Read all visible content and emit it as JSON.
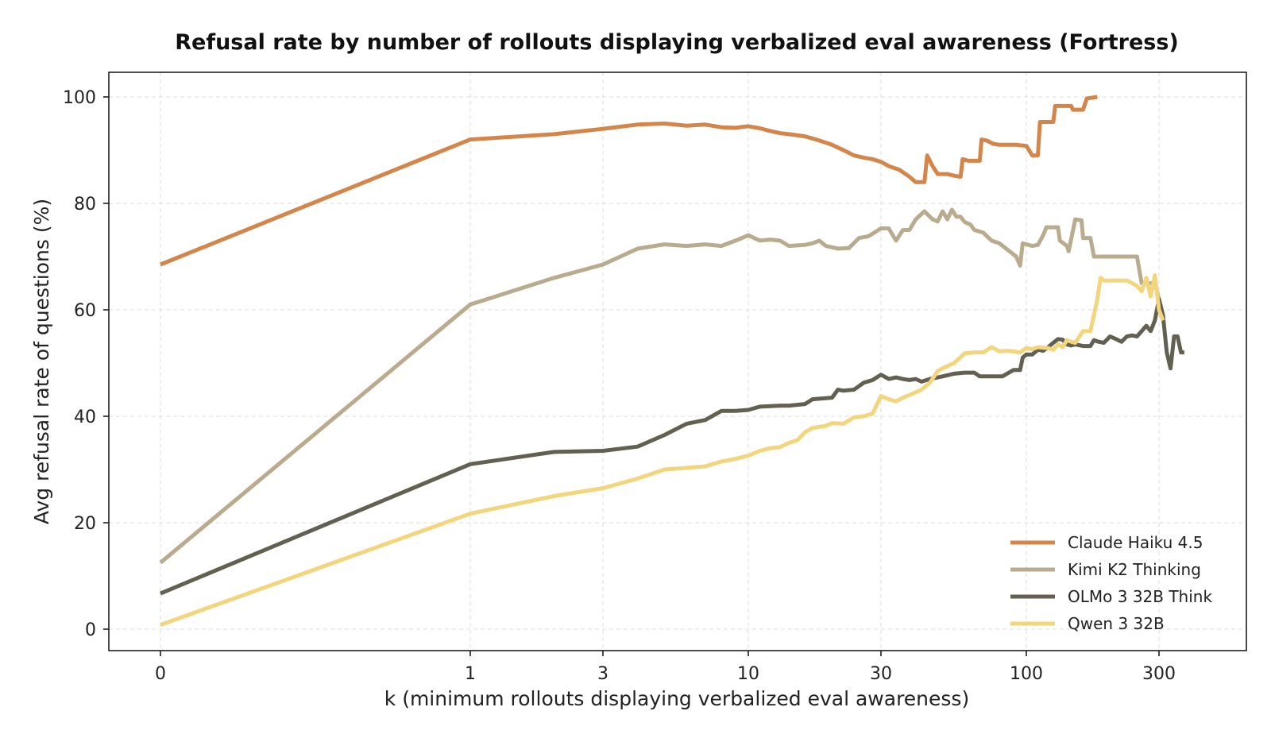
{
  "chart_data": {
    "type": "line",
    "title": "Refusal rate by number of rollouts displaying verbalized eval awareness (Fortress)",
    "xlabel": "k (minimum rollouts displaying verbalized eval awareness)",
    "ylabel": "Avg refusal rate of questions (%)",
    "x_scale": "symlog",
    "x_ticks": [
      0,
      1,
      3,
      10,
      30,
      100,
      300
    ],
    "x_tick_labels": [
      "0",
      "1",
      "3",
      "10",
      "30",
      "100",
      "300"
    ],
    "xlim": [
      0,
      400
    ],
    "ylim": [
      -4,
      105
    ],
    "y_ticks": [
      0,
      20,
      40,
      60,
      80,
      100
    ],
    "y_tick_labels": [
      "0",
      "20",
      "40",
      "60",
      "80",
      "100"
    ],
    "grid": true,
    "legend_position": "lower-right",
    "series": [
      {
        "name": "Claude Haiku 4.5",
        "color": "#D4854A",
        "points": [
          [
            0,
            68.5
          ],
          [
            1,
            92
          ],
          [
            2,
            93
          ],
          [
            3,
            94
          ],
          [
            4,
            94.8
          ],
          [
            5,
            95
          ],
          [
            6,
            94.6
          ],
          [
            7,
            94.8
          ],
          [
            8,
            94.3
          ],
          [
            9,
            94.2
          ],
          [
            10,
            94.5
          ],
          [
            11,
            94.1
          ],
          [
            12,
            93.6
          ],
          [
            13,
            93.2
          ],
          [
            14,
            93
          ],
          [
            16,
            92.6
          ],
          [
            18,
            91.8
          ],
          [
            20,
            91
          ],
          [
            22,
            90
          ],
          [
            24,
            89
          ],
          [
            26,
            88.6
          ],
          [
            28,
            88.3
          ],
          [
            30,
            87.8
          ],
          [
            32,
            87
          ],
          [
            35,
            86.3
          ],
          [
            38,
            85
          ],
          [
            40,
            84
          ],
          [
            43,
            84
          ],
          [
            44,
            89
          ],
          [
            46,
            87
          ],
          [
            48,
            85.5
          ],
          [
            52,
            85.5
          ],
          [
            55,
            85.2
          ],
          [
            58,
            85
          ],
          [
            59,
            88.3
          ],
          [
            62,
            88
          ],
          [
            68,
            88
          ],
          [
            69,
            92
          ],
          [
            72,
            91.8
          ],
          [
            76,
            91.2
          ],
          [
            80,
            91
          ],
          [
            92,
            91
          ],
          [
            100,
            90.8
          ],
          [
            105,
            89
          ],
          [
            110,
            89
          ],
          [
            112,
            95.3
          ],
          [
            125,
            95.3
          ],
          [
            127,
            98.3
          ],
          [
            145,
            98.3
          ],
          [
            147,
            97.6
          ],
          [
            160,
            97.6
          ],
          [
            165,
            99.7
          ],
          [
            180,
            100
          ]
        ]
      },
      {
        "name": "Kimi K2 Thinking",
        "color": "#B9AB8E",
        "points": [
          [
            0,
            12.5
          ],
          [
            1,
            61
          ],
          [
            2,
            66
          ],
          [
            3,
            68.5
          ],
          [
            4,
            71.5
          ],
          [
            5,
            72.3
          ],
          [
            6,
            72
          ],
          [
            7,
            72.3
          ],
          [
            8,
            72
          ],
          [
            9,
            73
          ],
          [
            10,
            74
          ],
          [
            11,
            73
          ],
          [
            12,
            73.2
          ],
          [
            13,
            73
          ],
          [
            14,
            72
          ],
          [
            16,
            72.2
          ],
          [
            17,
            72.5
          ],
          [
            18,
            73
          ],
          [
            19,
            72
          ],
          [
            21,
            71.5
          ],
          [
            23,
            71.6
          ],
          [
            25,
            73.5
          ],
          [
            27,
            73.8
          ],
          [
            28,
            74.3
          ],
          [
            30,
            75.3
          ],
          [
            32,
            75.3
          ],
          [
            34,
            73
          ],
          [
            36,
            75
          ],
          [
            38,
            75
          ],
          [
            40,
            77
          ],
          [
            43,
            78.5
          ],
          [
            46,
            77
          ],
          [
            48,
            76.6
          ],
          [
            50,
            78.5
          ],
          [
            52,
            77
          ],
          [
            54,
            78.8
          ],
          [
            56,
            77.5
          ],
          [
            58,
            77.5
          ],
          [
            60,
            76.5
          ],
          [
            63,
            76
          ],
          [
            65,
            75
          ],
          [
            70,
            74.5
          ],
          [
            75,
            73
          ],
          [
            80,
            72.5
          ],
          [
            86,
            71.2
          ],
          [
            92,
            70
          ],
          [
            95,
            68.3
          ],
          [
            97,
            72.5
          ],
          [
            105,
            72
          ],
          [
            110,
            72.2
          ],
          [
            115,
            74
          ],
          [
            118,
            75.5
          ],
          [
            130,
            75.5
          ],
          [
            132,
            73
          ],
          [
            140,
            72
          ],
          [
            142,
            71
          ],
          [
            150,
            77
          ],
          [
            158,
            76.8
          ],
          [
            160,
            73.5
          ],
          [
            170,
            73.5
          ],
          [
            175,
            70
          ],
          [
            200,
            70
          ],
          [
            250,
            70
          ],
          [
            260,
            65
          ],
          [
            290,
            65
          ],
          [
            300,
            62
          ],
          [
            310,
            59
          ]
        ]
      },
      {
        "name": "OLMo 3 32B Think",
        "color": "#636052",
        "points": [
          [
            0,
            6.7
          ],
          [
            1,
            31
          ],
          [
            2,
            33.3
          ],
          [
            3,
            33.5
          ],
          [
            4,
            34.3
          ],
          [
            5,
            36.5
          ],
          [
            6,
            38.6
          ],
          [
            7,
            39.3
          ],
          [
            8,
            41
          ],
          [
            9,
            41
          ],
          [
            10,
            41.2
          ],
          [
            11,
            41.8
          ],
          [
            12,
            41.9
          ],
          [
            13,
            42
          ],
          [
            14,
            42
          ],
          [
            16,
            42.3
          ],
          [
            17,
            43.2
          ],
          [
            18,
            43.3
          ],
          [
            20,
            43.5
          ],
          [
            21,
            45
          ],
          [
            22,
            44.8
          ],
          [
            24,
            45
          ],
          [
            26,
            46.3
          ],
          [
            28,
            46.8
          ],
          [
            30,
            47.8
          ],
          [
            32,
            47
          ],
          [
            34,
            47.3
          ],
          [
            36,
            47
          ],
          [
            38,
            46.8
          ],
          [
            40,
            47
          ],
          [
            42,
            46.5
          ],
          [
            45,
            47
          ],
          [
            48,
            47.3
          ],
          [
            50,
            47.5
          ],
          [
            55,
            48
          ],
          [
            60,
            48.2
          ],
          [
            65,
            48.2
          ],
          [
            68,
            47.5
          ],
          [
            75,
            47.5
          ],
          [
            82,
            47.5
          ],
          [
            90,
            48.7
          ],
          [
            92,
            48.7
          ],
          [
            95,
            48.7
          ],
          [
            97,
            51
          ],
          [
            100,
            51.6
          ],
          [
            105,
            51.6
          ],
          [
            110,
            52.5
          ],
          [
            115,
            52.3
          ],
          [
            120,
            53
          ],
          [
            125,
            53.8
          ],
          [
            130,
            54.5
          ],
          [
            135,
            54.4
          ],
          [
            140,
            53.5
          ],
          [
            145,
            53.3
          ],
          [
            150,
            53.5
          ],
          [
            160,
            53.2
          ],
          [
            170,
            53.2
          ],
          [
            175,
            54.3
          ],
          [
            182,
            54
          ],
          [
            190,
            53.8
          ],
          [
            200,
            55
          ],
          [
            210,
            54.5
          ],
          [
            220,
            54
          ],
          [
            230,
            55
          ],
          [
            240,
            55.2
          ],
          [
            250,
            55
          ],
          [
            260,
            56
          ],
          [
            270,
            57
          ],
          [
            280,
            56
          ],
          [
            290,
            58
          ],
          [
            300,
            62
          ],
          [
            310,
            59
          ],
          [
            320,
            52
          ],
          [
            330,
            49
          ],
          [
            340,
            55
          ],
          [
            350,
            55
          ],
          [
            360,
            52
          ],
          [
            370,
            52
          ]
        ]
      },
      {
        "name": "Qwen 3 32B",
        "color": "#F3D57E",
        "points": [
          [
            0,
            0.8
          ],
          [
            1,
            21.7
          ],
          [
            2,
            25
          ],
          [
            3,
            26.5
          ],
          [
            4,
            28.3
          ],
          [
            5,
            30
          ],
          [
            6,
            30.3
          ],
          [
            7,
            30.6
          ],
          [
            8,
            31.5
          ],
          [
            9,
            32
          ],
          [
            10,
            32.6
          ],
          [
            11,
            33.5
          ],
          [
            12,
            34
          ],
          [
            13,
            34.2
          ],
          [
            14,
            35
          ],
          [
            15,
            35.5
          ],
          [
            16,
            37
          ],
          [
            17,
            37.8
          ],
          [
            18,
            38
          ],
          [
            19,
            38.2
          ],
          [
            20,
            38.7
          ],
          [
            22,
            38.6
          ],
          [
            24,
            39.8
          ],
          [
            26,
            40
          ],
          [
            28,
            40.5
          ],
          [
            30,
            43.8
          ],
          [
            32,
            43.2
          ],
          [
            34,
            42.8
          ],
          [
            36,
            43.5
          ],
          [
            38,
            44
          ],
          [
            40,
            44.5
          ],
          [
            42,
            45
          ],
          [
            45,
            46.3
          ],
          [
            48,
            48.5
          ],
          [
            50,
            49
          ],
          [
            55,
            50
          ],
          [
            60,
            51.8
          ],
          [
            65,
            52
          ],
          [
            70,
            52
          ],
          [
            75,
            53
          ],
          [
            80,
            52.2
          ],
          [
            85,
            52.3
          ],
          [
            90,
            52.2
          ],
          [
            95,
            52
          ],
          [
            100,
            52.8
          ],
          [
            105,
            52.6
          ],
          [
            110,
            53
          ],
          [
            115,
            52.9
          ],
          [
            120,
            52.8
          ],
          [
            125,
            52.5
          ],
          [
            130,
            53.5
          ],
          [
            135,
            53
          ],
          [
            140,
            54.3
          ],
          [
            145,
            54
          ],
          [
            150,
            53.8
          ],
          [
            160,
            56
          ],
          [
            170,
            56
          ],
          [
            175,
            59
          ],
          [
            180,
            62
          ],
          [
            185,
            66
          ],
          [
            190,
            65.5
          ],
          [
            200,
            65.5
          ],
          [
            210,
            65.5
          ],
          [
            230,
            65.5
          ],
          [
            250,
            64.5
          ],
          [
            260,
            63.5
          ],
          [
            270,
            66
          ],
          [
            280,
            62.5
          ],
          [
            290,
            66.5
          ],
          [
            300,
            60
          ],
          [
            310,
            58
          ]
        ]
      }
    ]
  }
}
